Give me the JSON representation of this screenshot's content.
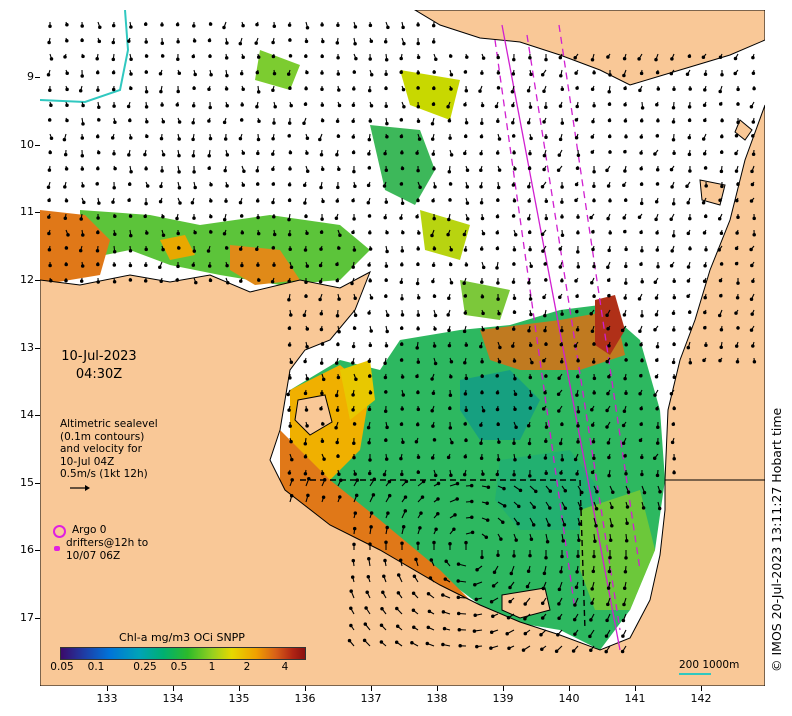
{
  "map": {
    "date": "10-Jul-2023",
    "time": "04:30Z",
    "altimetry_legend": [
      "Altimetric sealevel",
      "(0.1m contours)",
      "and velocity for",
      "10-Jul 04Z",
      "0.5m/s (1kt 12h)"
    ],
    "argo_label": "Argo 0",
    "drifters_label": [
      "drifters@12h to",
      "10/07 06Z"
    ],
    "colorbar_title": "Chl-a mg/m3 OCi SNPP",
    "colorbar_ticks": [
      "0.05",
      "0.1",
      "0.25",
      "0.5",
      "1",
      "2",
      "4"
    ],
    "scale_label": "200  1000m",
    "credit": "© IMOS 20-Jul-2023 13:11:27 Hobart time",
    "x_ticks": [
      "133",
      "134",
      "135",
      "136",
      "137",
      "138",
      "139",
      "140",
      "141",
      "142"
    ],
    "y_ticks": [
      "9",
      "10",
      "11",
      "12",
      "13",
      "14",
      "15",
      "16",
      "17"
    ],
    "colors": {
      "land": "#f9c897",
      "ocean": "#ffffff",
      "track": "#d020d0",
      "argo": "#e020e0",
      "contour": "#30c8c0"
    },
    "icons": [
      "current-vector-arrow",
      "argo-float-circle",
      "drifter-marker"
    ]
  }
}
